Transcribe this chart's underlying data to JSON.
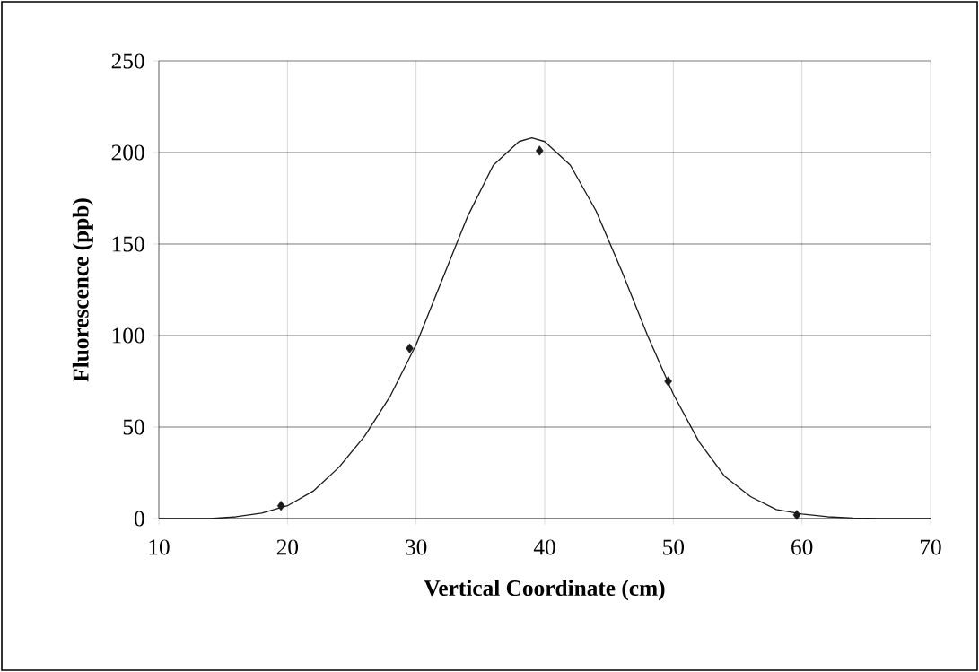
{
  "chart_data": {
    "type": "line",
    "xlabel": "Vertical Coordinate (cm)",
    "ylabel": "Fluorescence (ppb)",
    "xlim": [
      10,
      70
    ],
    "ylim": [
      0,
      250
    ],
    "xticks": [
      10,
      20,
      30,
      40,
      50,
      60,
      70
    ],
    "yticks": [
      0,
      50,
      100,
      150,
      200,
      250
    ],
    "grid": true,
    "series": [
      {
        "color": "#1a1a1a",
        "x": [
          10,
          14,
          16,
          18,
          20,
          22,
          24,
          26,
          28,
          30,
          32,
          34,
          36,
          38,
          39,
          40,
          42,
          44,
          46,
          48,
          50,
          52,
          54,
          56,
          58,
          60,
          62,
          64,
          66,
          70
        ],
        "values": [
          0,
          0,
          1,
          3,
          7,
          15,
          28,
          45,
          67,
          95,
          130,
          165,
          193,
          206,
          208,
          206,
          193,
          168,
          135,
          100,
          68,
          42,
          23,
          12,
          5,
          2.5,
          1,
          0.3,
          0,
          0
        ]
      },
      {
        "type": "scatter",
        "marker": "diamond",
        "color": "#1a1a1a",
        "x": [
          19.5,
          29.5,
          39.6,
          49.6,
          59.6
        ],
        "values": [
          7,
          93,
          201,
          75,
          2
        ]
      }
    ]
  }
}
